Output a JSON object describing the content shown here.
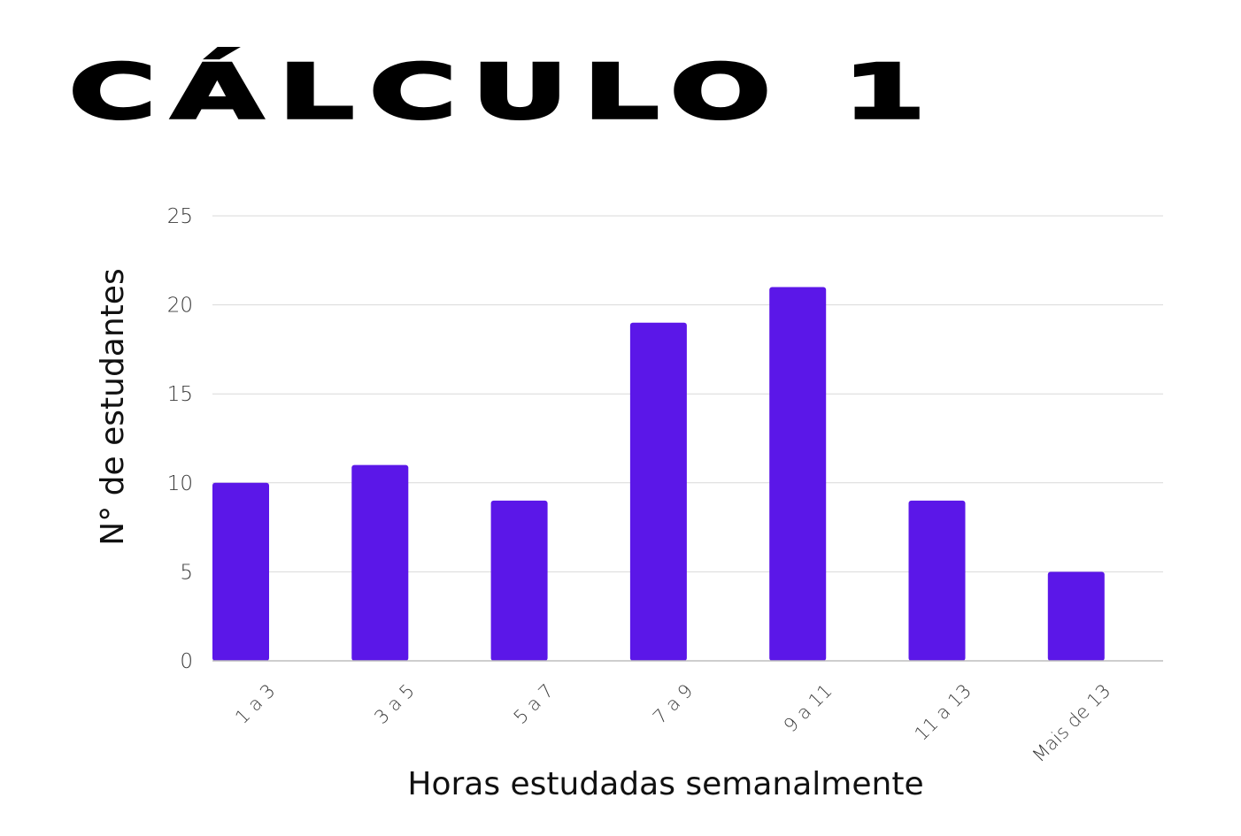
{
  "chart_data": {
    "type": "bar",
    "title": "CÁLCULO 1",
    "xlabel": "Horas estudadas semanalmente",
    "ylabel": "N° de estudantes",
    "categories": [
      "1 a 3",
      "3 a 5",
      "5 a 7",
      "7 a 9",
      "9 a 11",
      "11 a 13",
      "Mais de 13"
    ],
    "values": [
      10,
      11,
      9,
      19,
      21,
      9,
      5
    ],
    "ylim": [
      0,
      25
    ],
    "yticks": [
      "0",
      "5",
      "10",
      "15",
      "20",
      "25"
    ],
    "grid": true,
    "bar_color": "#5b17e8"
  }
}
